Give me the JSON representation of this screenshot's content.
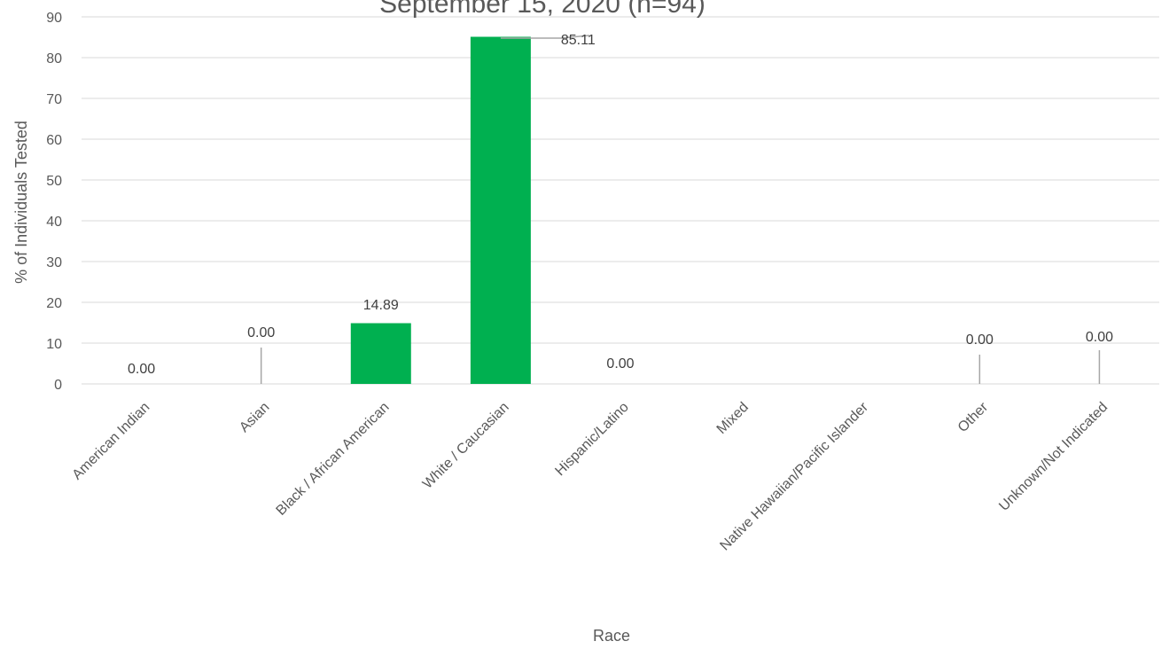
{
  "chart_data": {
    "type": "bar",
    "title": "September 15, 2020 (n=94)",
    "xlabel": "Race",
    "ylabel": "% of Individuals Tested",
    "ylim": [
      0,
      90
    ],
    "yticks": [
      "0",
      "10",
      "20",
      "30",
      "40",
      "50",
      "60",
      "70",
      "80",
      "90"
    ],
    "grid": true,
    "bar_color": "#00B050",
    "categories": [
      "American Indian",
      "Asian",
      "Black / African American",
      "White / Caucasian",
      "Hispanic/Latino",
      "Mixed",
      "Native Hawaiian/Pacific Islander",
      "Other",
      "Unknown/Not Indicated"
    ],
    "values": [
      0,
      0,
      14.89,
      85.11,
      0,
      0,
      0,
      0,
      0
    ],
    "data_labels": [
      "0.00",
      "0.00",
      "14.89",
      "85.11",
      "0.00",
      "",
      "",
      "0.00",
      "0.00"
    ]
  }
}
